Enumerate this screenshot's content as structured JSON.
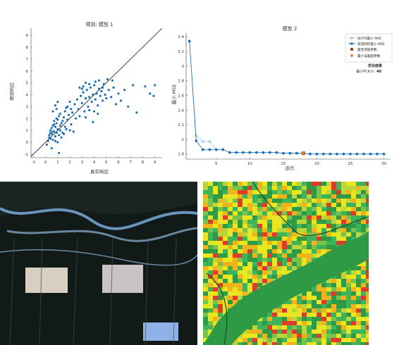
{
  "chart_data": [
    {
      "type": "scatter",
      "title": "预测: 模型 1",
      "xlabel": "真实响应",
      "ylabel": "预测响应",
      "xlim": [
        -1.2,
        9.6
      ],
      "ylim": [
        -1.3,
        9.6
      ],
      "xticks": [
        "-1",
        "0",
        "1",
        "2",
        "3",
        "4",
        "5",
        "6",
        "7",
        "8",
        "9"
      ],
      "yticks": [
        "-1",
        "0",
        "1",
        "2",
        "3",
        "4",
        "5",
        "6",
        "7",
        "8",
        "9"
      ],
      "reference_line": "y = x",
      "color": "#1f6fb5",
      "points": [
        [
          0.1,
          -0.2
        ],
        [
          0.2,
          0.1
        ],
        [
          0.3,
          0.6
        ],
        [
          0.4,
          0.3
        ],
        [
          0.5,
          1.2
        ],
        [
          0.6,
          0.9
        ],
        [
          0.7,
          1.5
        ],
        [
          0.8,
          0.5
        ],
        [
          0.9,
          2.0
        ],
        [
          1.0,
          1.1
        ],
        [
          1.1,
          -0.9
        ],
        [
          0.5,
          -0.5
        ],
        [
          1.0,
          0.0
        ],
        [
          1.2,
          2.4
        ],
        [
          1.3,
          1.6
        ],
        [
          1.4,
          0.8
        ],
        [
          1.5,
          2.1
        ],
        [
          1.6,
          1.3
        ],
        [
          1.7,
          2.9
        ],
        [
          1.8,
          1.9
        ],
        [
          0.6,
          2.6
        ],
        [
          0.8,
          3.1
        ],
        [
          0.9,
          2.8
        ],
        [
          1.0,
          3.4
        ],
        [
          1.1,
          2.2
        ],
        [
          0.7,
          1.8
        ],
        [
          0.4,
          1.0
        ],
        [
          0.3,
          0.4
        ],
        [
          0.6,
          0.2
        ],
        [
          0.9,
          0.8
        ],
        [
          2.0,
          1.0
        ],
        [
          2.2,
          2.5
        ],
        [
          2.4,
          3.2
        ],
        [
          2.6,
          3.6
        ],
        [
          2.7,
          2.8
        ],
        [
          2.9,
          3.9
        ],
        [
          3.0,
          3.3
        ],
        [
          3.1,
          4.2
        ],
        [
          3.2,
          2.6
        ],
        [
          3.3,
          3.7
        ],
        [
          3.4,
          4.4
        ],
        [
          3.5,
          3.0
        ],
        [
          3.6,
          3.8
        ],
        [
          3.7,
          4.6
        ],
        [
          3.8,
          3.4
        ],
        [
          3.9,
          4.0
        ],
        [
          4.0,
          4.8
        ],
        [
          4.1,
          3.6
        ],
        [
          4.2,
          4.1
        ],
        [
          4.3,
          3.1
        ],
        [
          4.4,
          4.5
        ],
        [
          4.5,
          3.9
        ],
        [
          4.6,
          4.3
        ],
        [
          4.7,
          3.5
        ],
        [
          4.8,
          4.9
        ],
        [
          4.9,
          4.0
        ],
        [
          5.0,
          3.7
        ],
        [
          5.2,
          4.4
        ],
        [
          5.4,
          3.8
        ],
        [
          5.6,
          4.6
        ],
        [
          5.8,
          3.2
        ],
        [
          6.0,
          4.1
        ],
        [
          6.2,
          3.5
        ],
        [
          6.5,
          4.4
        ],
        [
          6.8,
          3.0
        ],
        [
          7.2,
          4.8
        ],
        [
          7.5,
          2.5
        ],
        [
          8.2,
          4.7
        ],
        [
          8.6,
          4.1
        ],
        [
          8.9,
          3.9
        ],
        [
          9.0,
          4.8
        ],
        [
          2.1,
          1.5
        ],
        [
          2.3,
          0.9
        ],
        [
          2.5,
          2.0
        ],
        [
          2.8,
          2.2
        ],
        [
          3.3,
          2.1
        ],
        [
          3.6,
          2.7
        ],
        [
          4.0,
          2.6
        ],
        [
          3.9,
          1.7
        ],
        [
          4.3,
          2.4
        ],
        [
          3.1,
          4.7
        ],
        [
          3.3,
          5.0
        ],
        [
          3.6,
          4.9
        ],
        [
          4.1,
          5.1
        ],
        [
          4.4,
          5.2
        ],
        [
          3.0,
          4.5
        ],
        [
          2.8,
          4.6
        ],
        [
          4.7,
          4.6
        ],
        [
          5.1,
          5.3
        ],
        [
          5.5,
          5.2
        ],
        [
          1.2,
          1.0
        ],
        [
          1.3,
          0.4
        ],
        [
          1.4,
          1.8
        ],
        [
          1.5,
          0.7
        ],
        [
          1.6,
          2.6
        ],
        [
          1.7,
          1.1
        ],
        [
          1.8,
          3.0
        ],
        [
          1.9,
          2.3
        ],
        [
          2.0,
          3.4
        ],
        [
          2.1,
          2.8
        ],
        [
          0.5,
          0.7
        ],
        [
          0.7,
          0.9
        ],
        [
          0.8,
          1.3
        ],
        [
          0.9,
          1.6
        ],
        [
          1.0,
          1.9
        ],
        [
          1.1,
          0.6
        ],
        [
          0.6,
          1.4
        ],
        [
          0.4,
          0.8
        ],
        [
          0.8,
          0.1
        ],
        [
          1.2,
          1.4
        ]
      ]
    },
    {
      "type": "line",
      "title": "模型 2",
      "xlabel": "迭代",
      "ylabel": "最小 MSE",
      "xlim": [
        0.5,
        31
      ],
      "ylim": [
        1.73,
        3.45
      ],
      "xticks": [
        "5",
        "10",
        "15",
        "20",
        "25",
        "30"
      ],
      "yticks": [
        "1.8",
        "2",
        "2.2",
        "2.4",
        "2.6",
        "2.8",
        "3",
        "3.2",
        "3.4"
      ],
      "legend_position": "top-right",
      "legend": [
        "估计的最小 MSE",
        "观测到的最小 MSE",
        "最佳点超参数",
        "最小误差超参数"
      ],
      "series": [
        {
          "name": "估计的最小 MSE",
          "color": "#9cc9ef",
          "x": [
            1,
            2,
            3,
            4,
            5,
            6,
            7,
            8,
            9,
            10,
            11,
            12,
            13,
            14,
            15,
            16,
            17,
            18,
            19,
            20,
            21,
            22,
            23,
            24,
            25,
            26,
            27,
            28,
            29,
            30
          ],
          "y": [
            3.34,
            2.05,
            1.97,
            1.97,
            1.86,
            1.86,
            1.82,
            1.82,
            1.82,
            1.82,
            1.82,
            1.82,
            1.82,
            1.82,
            1.81,
            1.81,
            1.81,
            1.81,
            1.8,
            1.8,
            1.8,
            1.8,
            1.8,
            1.8,
            1.8,
            1.8,
            1.8,
            1.8,
            1.8,
            1.8
          ]
        },
        {
          "name": "观测到的最小 MSE",
          "color": "#1f6fb5",
          "x": [
            1,
            2,
            3,
            4,
            5,
            6,
            7,
            8,
            9,
            10,
            11,
            12,
            13,
            14,
            15,
            16,
            17,
            18,
            19,
            20,
            21,
            22,
            23,
            24,
            25,
            26,
            27,
            28,
            29,
            30
          ],
          "y": [
            3.34,
            1.98,
            1.86,
            1.86,
            1.86,
            1.86,
            1.82,
            1.82,
            1.82,
            1.82,
            1.82,
            1.82,
            1.82,
            1.82,
            1.81,
            1.81,
            1.81,
            1.81,
            1.8,
            1.8,
            1.8,
            1.8,
            1.8,
            1.8,
            1.8,
            1.8,
            1.8,
            1.8,
            1.8,
            1.8
          ]
        }
      ],
      "best_point": {
        "name": "最佳点超参数",
        "x": 18,
        "y": 1.81,
        "color": "#9e4a1c"
      },
      "min_error_point": {
        "name": "最小误差超参数",
        "x": 18,
        "y": 1.81,
        "color": "#e8862a"
      },
      "annotation": {
        "title": "优化结果",
        "label": "最小叶大小:",
        "value": "40"
      }
    }
  ],
  "images": [
    {
      "name": "satellite-image",
      "palette": [
        "#0d1412",
        "#24342d",
        "#3e4c47",
        "#8a9aa6",
        "#7fb3e6",
        "#d8cfc0"
      ]
    },
    {
      "name": "classification-map",
      "palette": [
        "#2e9a45",
        "#3db35a",
        "#79c34c",
        "#b9d73a",
        "#e9e51e",
        "#f0b31c",
        "#de3c2a",
        "#1e4f2e"
      ]
    }
  ]
}
